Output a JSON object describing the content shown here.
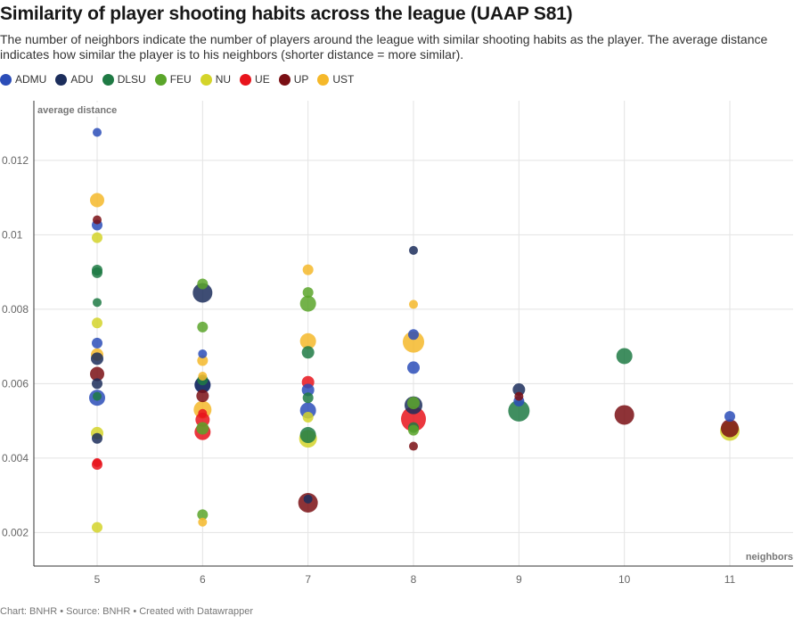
{
  "title": "Similarity of player shooting habits across the league (UAAP S81)",
  "subtitle": "The number of neighbors indicate the number of players around the league with similar shooting habits as the player. The average distance indicates how similar the player is to his neighbors (shorter distance = more similar).",
  "footer": "Chart: BNHR • Source: BNHR • Created with Datawrapper",
  "legend": [
    {
      "name": "ADMU",
      "color": "#2b4db8"
    },
    {
      "name": "ADU",
      "color": "#1c2e5c"
    },
    {
      "name": "DLSU",
      "color": "#1f7a44"
    },
    {
      "name": "FEU",
      "color": "#5aa52a"
    },
    {
      "name": "NU",
      "color": "#d4d42a"
    },
    {
      "name": "UE",
      "color": "#e8141c"
    },
    {
      "name": "UP",
      "color": "#7a0f14"
    },
    {
      "name": "UST",
      "color": "#f5b82a"
    }
  ],
  "chart_data": {
    "type": "scatter",
    "xlabel": "neighbors",
    "ylabel": "average distance",
    "xlim": [
      4.4,
      11.6
    ],
    "ylim": [
      0.0011,
      0.0136
    ],
    "x_ticks": [
      "5",
      "6",
      "7",
      "8",
      "9",
      "10",
      "11"
    ],
    "y_ticks": [
      "0.002",
      "0.004",
      "0.006",
      "0.008",
      "0.01",
      "0.012"
    ],
    "grid": true,
    "legend_position": "top",
    "points": [
      {
        "team": "ADMU",
        "x": 5,
        "y": 0.01275,
        "s": 5
      },
      {
        "team": "UST",
        "x": 5,
        "y": 0.01093,
        "s": 8
      },
      {
        "team": "UP",
        "x": 5,
        "y": 0.0104,
        "s": 5
      },
      {
        "team": "ADMU",
        "x": 5,
        "y": 0.01026,
        "s": 6
      },
      {
        "team": "NU",
        "x": 5,
        "y": 0.00992,
        "s": 6
      },
      {
        "team": "DLSU",
        "x": 5,
        "y": 0.00905,
        "s": 6
      },
      {
        "team": "DLSU",
        "x": 5,
        "y": 0.00898,
        "s": 6
      },
      {
        "team": "DLSU",
        "x": 5,
        "y": 0.00818,
        "s": 5
      },
      {
        "team": "NU",
        "x": 5,
        "y": 0.00763,
        "s": 6
      },
      {
        "team": "ADMU",
        "x": 5,
        "y": 0.00709,
        "s": 6
      },
      {
        "team": "UST",
        "x": 5,
        "y": 0.00678,
        "s": 7
      },
      {
        "team": "ADU",
        "x": 5,
        "y": 0.00667,
        "s": 7
      },
      {
        "team": "UP",
        "x": 5,
        "y": 0.00626,
        "s": 8
      },
      {
        "team": "ADU",
        "x": 5,
        "y": 0.006,
        "s": 6
      },
      {
        "team": "ADMU",
        "x": 5,
        "y": 0.00562,
        "s": 9
      },
      {
        "team": "DLSU",
        "x": 5,
        "y": 0.00566,
        "s": 5
      },
      {
        "team": "NU",
        "x": 5,
        "y": 0.00467,
        "s": 7
      },
      {
        "team": "ADU",
        "x": 5,
        "y": 0.00453,
        "s": 6
      },
      {
        "team": "UE",
        "x": 5,
        "y": 0.00388,
        "s": 5
      },
      {
        "team": "UE",
        "x": 5,
        "y": 0.00383,
        "s": 6
      },
      {
        "team": "NU",
        "x": 5,
        "y": 0.00214,
        "s": 6
      },
      {
        "team": "FEU",
        "x": 6,
        "y": 0.00868,
        "s": 6
      },
      {
        "team": "ADU",
        "x": 6,
        "y": 0.00844,
        "s": 11
      },
      {
        "team": "FEU",
        "x": 6,
        "y": 0.00752,
        "s": 6
      },
      {
        "team": "ADMU",
        "x": 6,
        "y": 0.0068,
        "s": 5
      },
      {
        "team": "UST",
        "x": 6,
        "y": 0.00662,
        "s": 6
      },
      {
        "team": "DLSU",
        "x": 6,
        "y": 0.0061,
        "s": 6
      },
      {
        "team": "UST",
        "x": 6,
        "y": 0.0062,
        "s": 5
      },
      {
        "team": "ADMU",
        "x": 6,
        "y": 0.00596,
        "s": 9
      },
      {
        "team": "ADU",
        "x": 6,
        "y": 0.00597,
        "s": 9
      },
      {
        "team": "UP",
        "x": 6,
        "y": 0.00567,
        "s": 7
      },
      {
        "team": "UST",
        "x": 6,
        "y": 0.0053,
        "s": 10
      },
      {
        "team": "UE",
        "x": 6,
        "y": 0.0052,
        "s": 5
      },
      {
        "team": "UE",
        "x": 6,
        "y": 0.00503,
        "s": 8
      },
      {
        "team": "FEU",
        "x": 6,
        "y": 0.0048,
        "s": 7
      },
      {
        "team": "UE",
        "x": 6,
        "y": 0.0047,
        "s": 9
      },
      {
        "team": "FEU",
        "x": 6,
        "y": 0.00248,
        "s": 6
      },
      {
        "team": "UST",
        "x": 6,
        "y": 0.00228,
        "s": 5
      },
      {
        "team": "UST",
        "x": 7,
        "y": 0.00906,
        "s": 6
      },
      {
        "team": "FEU",
        "x": 7,
        "y": 0.00845,
        "s": 6
      },
      {
        "team": "FEU",
        "x": 7,
        "y": 0.00815,
        "s": 9
      },
      {
        "team": "UST",
        "x": 7,
        "y": 0.00714,
        "s": 9
      },
      {
        "team": "DLSU",
        "x": 7,
        "y": 0.00684,
        "s": 7
      },
      {
        "team": "UE",
        "x": 7,
        "y": 0.00604,
        "s": 7
      },
      {
        "team": "ADMU",
        "x": 7,
        "y": 0.00583,
        "s": 7
      },
      {
        "team": "DLSU",
        "x": 7,
        "y": 0.00562,
        "s": 6
      },
      {
        "team": "ADMU",
        "x": 7,
        "y": 0.00528,
        "s": 9
      },
      {
        "team": "NU",
        "x": 7,
        "y": 0.0051,
        "s": 6
      },
      {
        "team": "NU",
        "x": 7,
        "y": 0.00452,
        "s": 10
      },
      {
        "team": "DLSU",
        "x": 7,
        "y": 0.00462,
        "s": 9
      },
      {
        "team": "UP",
        "x": 7,
        "y": 0.0028,
        "s": 11
      },
      {
        "team": "ADU",
        "x": 7,
        "y": 0.0029,
        "s": 5
      },
      {
        "team": "ADU",
        "x": 8,
        "y": 0.00958,
        "s": 5
      },
      {
        "team": "UST",
        "x": 8,
        "y": 0.00813,
        "s": 5
      },
      {
        "team": "ADMU",
        "x": 8,
        "y": 0.00732,
        "s": 6
      },
      {
        "team": "UST",
        "x": 8,
        "y": 0.00712,
        "s": 12
      },
      {
        "team": "ADMU",
        "x": 8,
        "y": 0.00643,
        "s": 7
      },
      {
        "team": "ADU",
        "x": 8,
        "y": 0.00542,
        "s": 10
      },
      {
        "team": "FEU",
        "x": 8,
        "y": 0.00548,
        "s": 7
      },
      {
        "team": "UE",
        "x": 8,
        "y": 0.00505,
        "s": 14
      },
      {
        "team": "DLSU",
        "x": 8,
        "y": 0.00482,
        "s": 6
      },
      {
        "team": "FEU",
        "x": 8,
        "y": 0.00475,
        "s": 6
      },
      {
        "team": "UP",
        "x": 8,
        "y": 0.00432,
        "s": 5
      },
      {
        "team": "ADU",
        "x": 9,
        "y": 0.00584,
        "s": 7
      },
      {
        "team": "UP",
        "x": 9,
        "y": 0.00566,
        "s": 5
      },
      {
        "team": "ADMU",
        "x": 9,
        "y": 0.00553,
        "s": 6
      },
      {
        "team": "DLSU",
        "x": 9,
        "y": 0.00527,
        "s": 12
      },
      {
        "team": "DLSU",
        "x": 10,
        "y": 0.00674,
        "s": 9
      },
      {
        "team": "UP",
        "x": 10,
        "y": 0.00516,
        "s": 11
      },
      {
        "team": "ADMU",
        "x": 11,
        "y": 0.00512,
        "s": 6
      },
      {
        "team": "NU",
        "x": 11,
        "y": 0.00473,
        "s": 11
      },
      {
        "team": "UP",
        "x": 11,
        "y": 0.0048,
        "s": 10
      }
    ]
  }
}
